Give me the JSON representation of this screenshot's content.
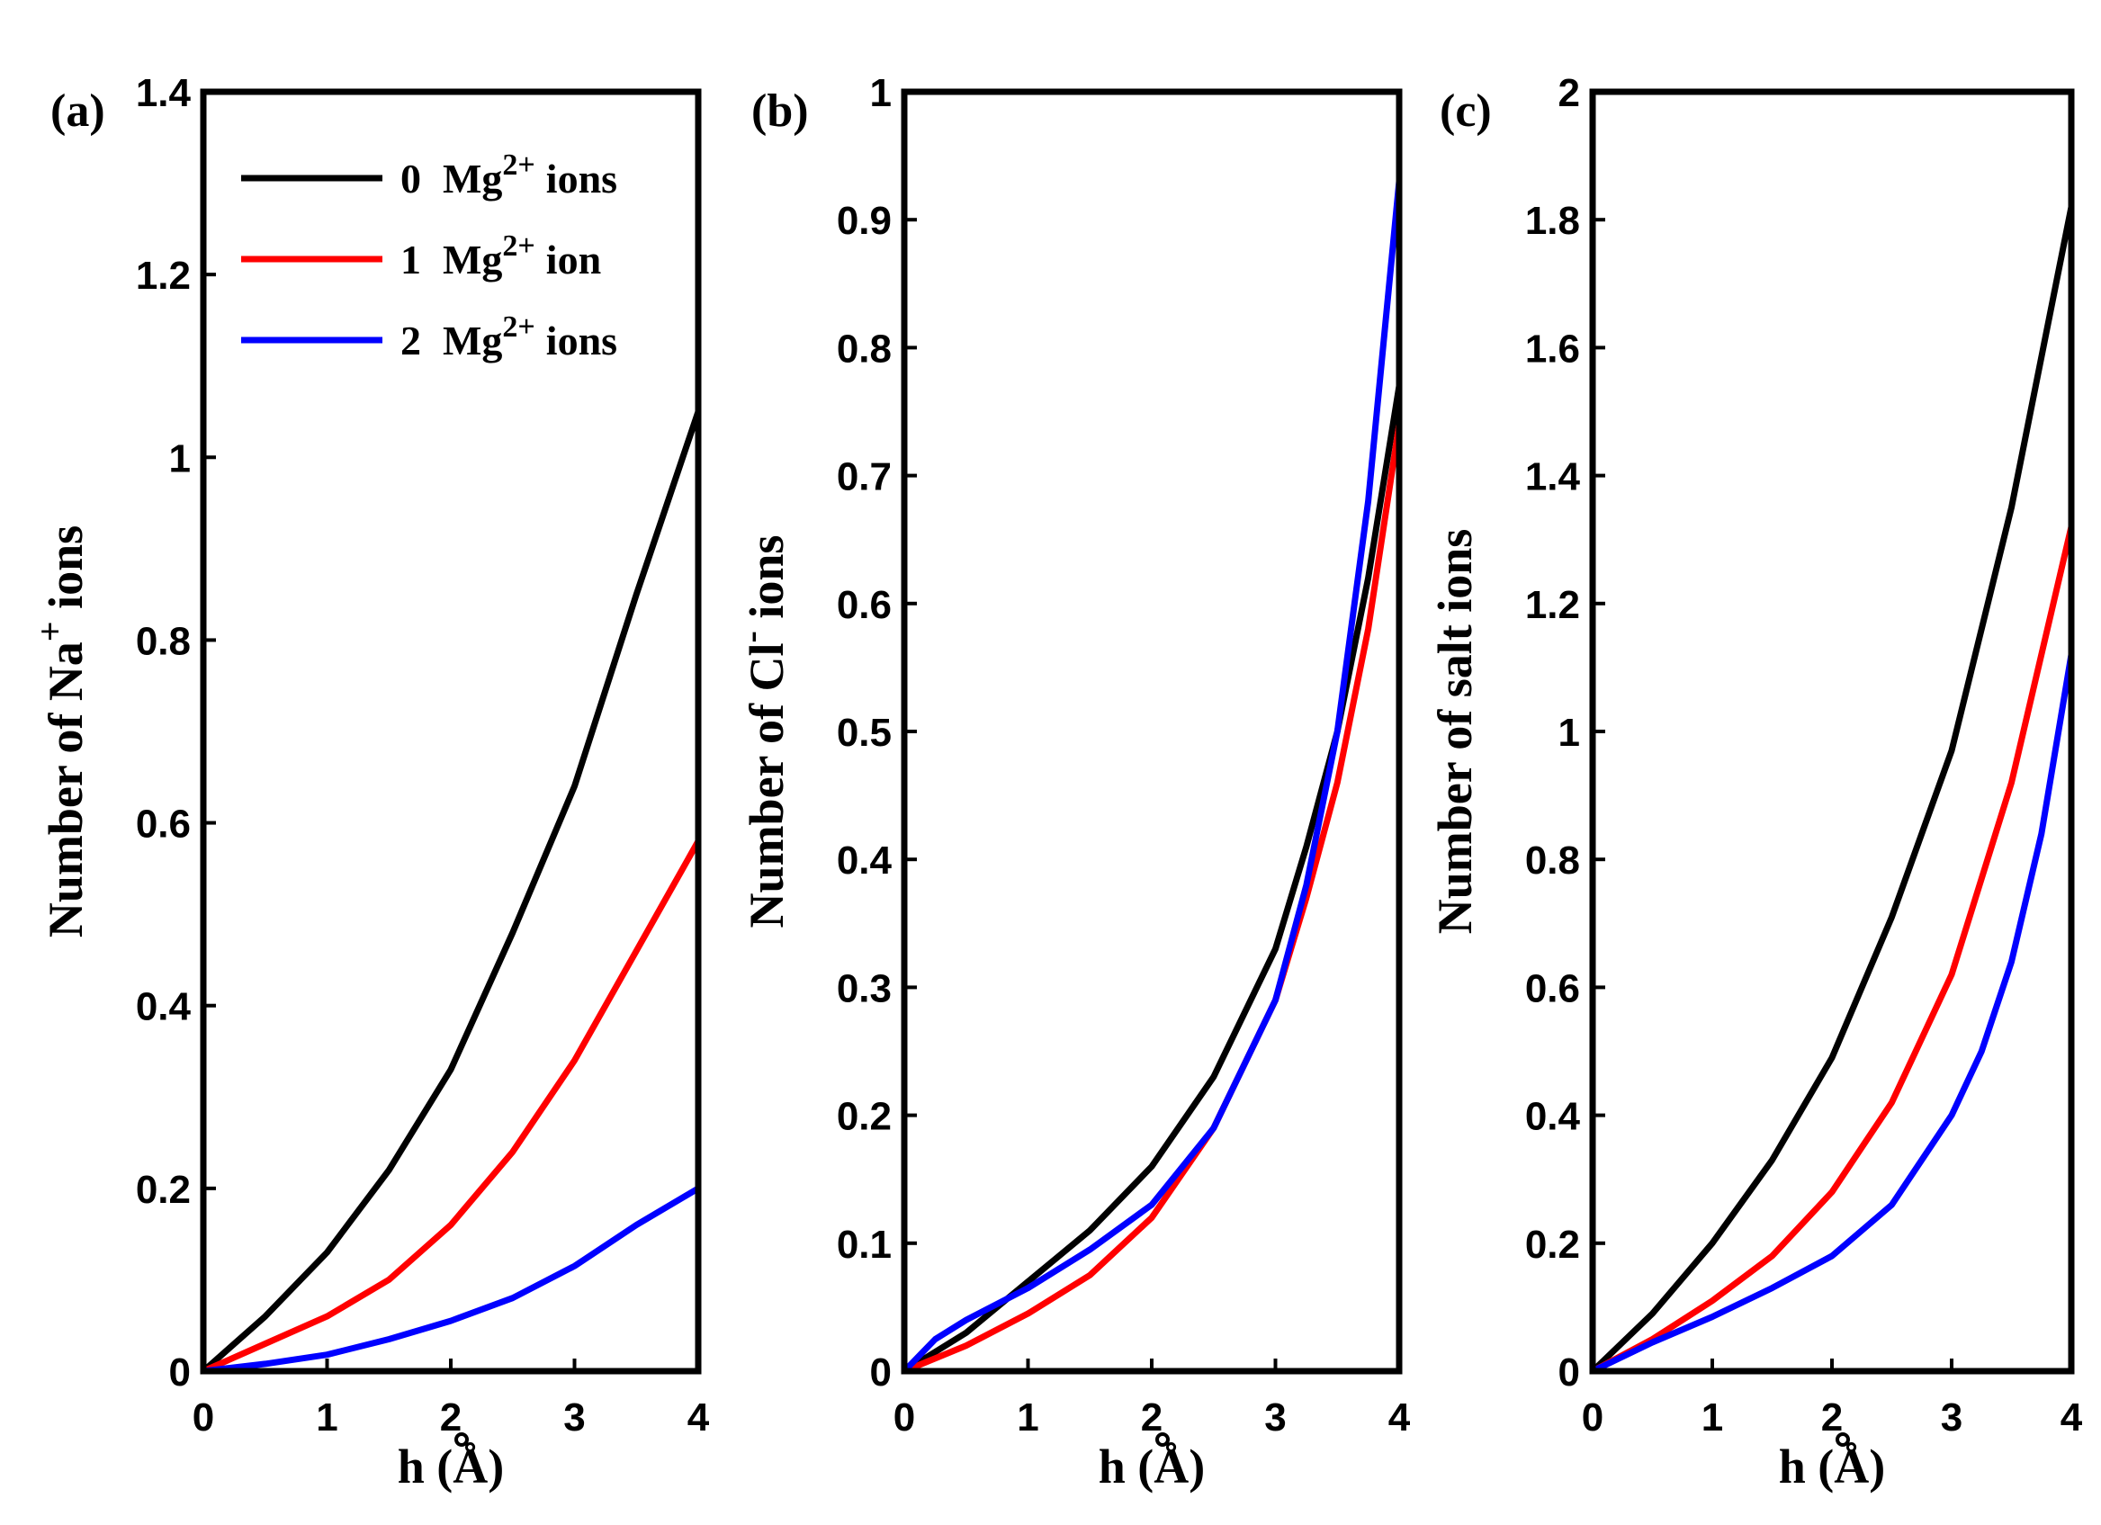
{
  "legend": {
    "entries": [
      {
        "count": "0",
        "species": "Mg",
        "charge": "2+",
        "suffix": "ions",
        "color": "#000000"
      },
      {
        "count": "1",
        "species": "Mg",
        "charge": "2+",
        "suffix": "ion",
        "color": "#ff0000"
      },
      {
        "count": "2",
        "species": "Mg",
        "charge": "2+",
        "suffix": "ions",
        "color": "#0000ff"
      }
    ]
  },
  "chart_data": [
    {
      "type": "line",
      "panel_label": "(a)",
      "xlabel": "h (Å)",
      "ylabel_main": "Number of Na",
      "ylabel_sup": "+",
      "ylabel_tail": " ions",
      "xlim": [
        0,
        4
      ],
      "ylim": [
        0,
        1.4
      ],
      "xticks": [
        "0",
        "1",
        "2",
        "3",
        "4"
      ],
      "yticks": [
        "0",
        "0.2",
        "0.4",
        "0.6",
        "0.8",
        "1",
        "1.2",
        "1.4"
      ],
      "ytick_values": [
        0,
        0.2,
        0.4,
        0.6,
        0.8,
        1.0,
        1.2,
        1.4
      ],
      "series": [
        {
          "name": "0 Mg2+ ions",
          "color": "#000000",
          "x": [
            0,
            0.5,
            1,
            1.5,
            2,
            2.5,
            3,
            3.5,
            4
          ],
          "y": [
            0,
            0.06,
            0.13,
            0.22,
            0.33,
            0.48,
            0.64,
            0.85,
            1.05
          ]
        },
        {
          "name": "1 Mg2+ ion",
          "color": "#ff0000",
          "x": [
            0,
            0.5,
            1,
            1.5,
            2,
            2.5,
            3,
            3.5,
            4
          ],
          "y": [
            0,
            0.03,
            0.06,
            0.1,
            0.16,
            0.24,
            0.34,
            0.46,
            0.58
          ]
        },
        {
          "name": "2 Mg2+ ions",
          "color": "#0000ff",
          "x": [
            0,
            0.5,
            1,
            1.5,
            2,
            2.5,
            3,
            3.5,
            4
          ],
          "y": [
            0,
            0.008,
            0.018,
            0.035,
            0.055,
            0.08,
            0.115,
            0.16,
            0.2
          ]
        }
      ]
    },
    {
      "type": "line",
      "panel_label": "(b)",
      "xlabel": "h (Å)",
      "ylabel_main": "Number of Cl",
      "ylabel_sup": "-",
      "ylabel_tail": " ions",
      "xlim": [
        0,
        4
      ],
      "ylim": [
        0,
        1
      ],
      "xticks": [
        "0",
        "1",
        "2",
        "3",
        "4"
      ],
      "yticks": [
        "0",
        "0.1",
        "0.2",
        "0.3",
        "0.4",
        "0.5",
        "0.6",
        "0.7",
        "0.8",
        "0.9",
        "1"
      ],
      "ytick_values": [
        0,
        0.1,
        0.2,
        0.3,
        0.4,
        0.5,
        0.6,
        0.7,
        0.8,
        0.9,
        1.0
      ],
      "series": [
        {
          "name": "0 Mg2+ ions",
          "color": "#000000",
          "x": [
            0,
            0.5,
            1,
            1.5,
            2,
            2.5,
            3,
            3.25,
            3.5,
            3.75,
            4
          ],
          "y": [
            0,
            0.03,
            0.07,
            0.11,
            0.16,
            0.23,
            0.33,
            0.41,
            0.5,
            0.62,
            0.77
          ]
        },
        {
          "name": "1 Mg2+ ion",
          "color": "#ff0000",
          "x": [
            0,
            0.5,
            1,
            1.5,
            2,
            2.5,
            3,
            3.25,
            3.5,
            3.75,
            4
          ],
          "y": [
            0,
            0.02,
            0.045,
            0.075,
            0.12,
            0.19,
            0.29,
            0.37,
            0.46,
            0.58,
            0.74
          ]
        },
        {
          "name": "2 Mg2+ ions",
          "color": "#0000ff",
          "x": [
            0,
            0.25,
            0.5,
            1,
            1.5,
            2,
            2.5,
            3,
            3.25,
            3.5,
            3.75,
            4
          ],
          "y": [
            0,
            0.025,
            0.04,
            0.065,
            0.095,
            0.13,
            0.19,
            0.29,
            0.38,
            0.5,
            0.68,
            0.93
          ]
        }
      ]
    },
    {
      "type": "line",
      "panel_label": "(c)",
      "xlabel": "h (Å)",
      "ylabel_main": "Number of salt ions",
      "ylabel_sup": "",
      "ylabel_tail": "",
      "xlim": [
        0,
        4
      ],
      "ylim": [
        0,
        2
      ],
      "xticks": [
        "0",
        "1",
        "2",
        "3",
        "4"
      ],
      "yticks": [
        "0",
        "0.2",
        "0.4",
        "0.6",
        "0.8",
        "1",
        "1.2",
        "1.4",
        "1.6",
        "1.8",
        "2"
      ],
      "ytick_values": [
        0,
        0.2,
        0.4,
        0.6,
        0.8,
        1.0,
        1.2,
        1.4,
        1.6,
        1.8,
        2.0
      ],
      "series": [
        {
          "name": "0 Mg2+ ions",
          "color": "#000000",
          "x": [
            0,
            0.5,
            1,
            1.5,
            2,
            2.5,
            3,
            3.5,
            4
          ],
          "y": [
            0,
            0.09,
            0.2,
            0.33,
            0.49,
            0.71,
            0.97,
            1.35,
            1.82
          ]
        },
        {
          "name": "1 Mg2+ ion",
          "color": "#ff0000",
          "x": [
            0,
            0.5,
            1,
            1.5,
            2,
            2.5,
            3,
            3.5,
            4
          ],
          "y": [
            0,
            0.05,
            0.11,
            0.18,
            0.28,
            0.42,
            0.62,
            0.92,
            1.32
          ]
        },
        {
          "name": "2 Mg2+ ions",
          "color": "#0000ff",
          "x": [
            0,
            0.5,
            1,
            1.5,
            2,
            2.5,
            3,
            3.25,
            3.5,
            3.75,
            4
          ],
          "y": [
            0,
            0.045,
            0.085,
            0.13,
            0.18,
            0.26,
            0.4,
            0.5,
            0.64,
            0.84,
            1.12
          ]
        }
      ]
    }
  ]
}
